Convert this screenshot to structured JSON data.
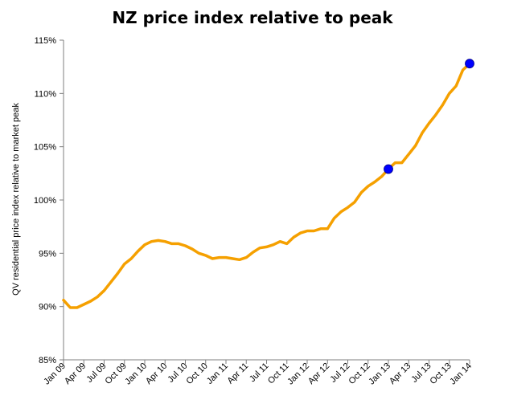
{
  "chart_data": {
    "type": "line",
    "title": "NZ price index relative to peak",
    "xlabel": "",
    "ylabel": "QV residential price index relative to market peak",
    "ylim": [
      85,
      115
    ],
    "y_ticks": [
      "85%",
      "90%",
      "95%",
      "100%",
      "105%",
      "110%",
      "115%"
    ],
    "x_ticks": [
      "Jan 09",
      "Apr 09",
      "Jul 09",
      "Oct 09",
      "Jan 10",
      "Apr 10",
      "Jul 10",
      "Oct 10",
      "Jan 11",
      "Apr 11",
      "Jul 11",
      "Oct 11",
      "Jan 12",
      "Apr 12",
      "Jul 12",
      "Oct 12",
      "Jan 13",
      "Apr 13",
      "Jul 13",
      "Oct 13",
      "Jan 14"
    ],
    "grid": false,
    "line_color": "#F5A000",
    "marker_color": "#0000FF",
    "series": [
      {
        "values": [
          90.6,
          89.9,
          89.9,
          90.2,
          90.5,
          90.9,
          91.5,
          92.3,
          93.1,
          94.0,
          94.5,
          95.2,
          95.8,
          96.1,
          96.2,
          96.1,
          95.9,
          95.9,
          95.7,
          95.4,
          95.0,
          94.8,
          94.5,
          94.6,
          94.6,
          94.5,
          94.4,
          94.6,
          95.1,
          95.5,
          95.6,
          95.8,
          96.1,
          95.9,
          96.5,
          96.9,
          97.1,
          97.1,
          97.3,
          97.3,
          98.3,
          98.9,
          99.3,
          99.8,
          100.7,
          101.3,
          101.7,
          102.2,
          102.9,
          103.5,
          103.5,
          104.3,
          105.1,
          106.3,
          107.2,
          108.0,
          108.9,
          110.0,
          110.7,
          112.2,
          112.8
        ]
      }
    ],
    "highlight_points": [
      {
        "label": "Jan 13",
        "index": 48,
        "value": 102.9
      },
      {
        "label": "Jan 14",
        "index": 60,
        "value": 112.8
      }
    ]
  }
}
